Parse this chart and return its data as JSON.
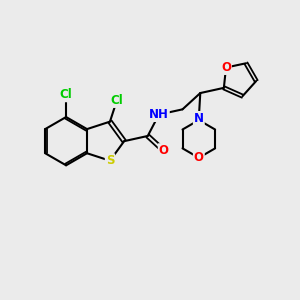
{
  "background_color": "#ebebeb",
  "bond_color": "#000000",
  "atom_colors": {
    "Cl": "#00cc00",
    "S": "#cccc00",
    "N": "#0000ff",
    "O": "#ff0000",
    "H": "#444444",
    "C": "#000000"
  },
  "figsize": [
    3.0,
    3.0
  ],
  "dpi": 100
}
